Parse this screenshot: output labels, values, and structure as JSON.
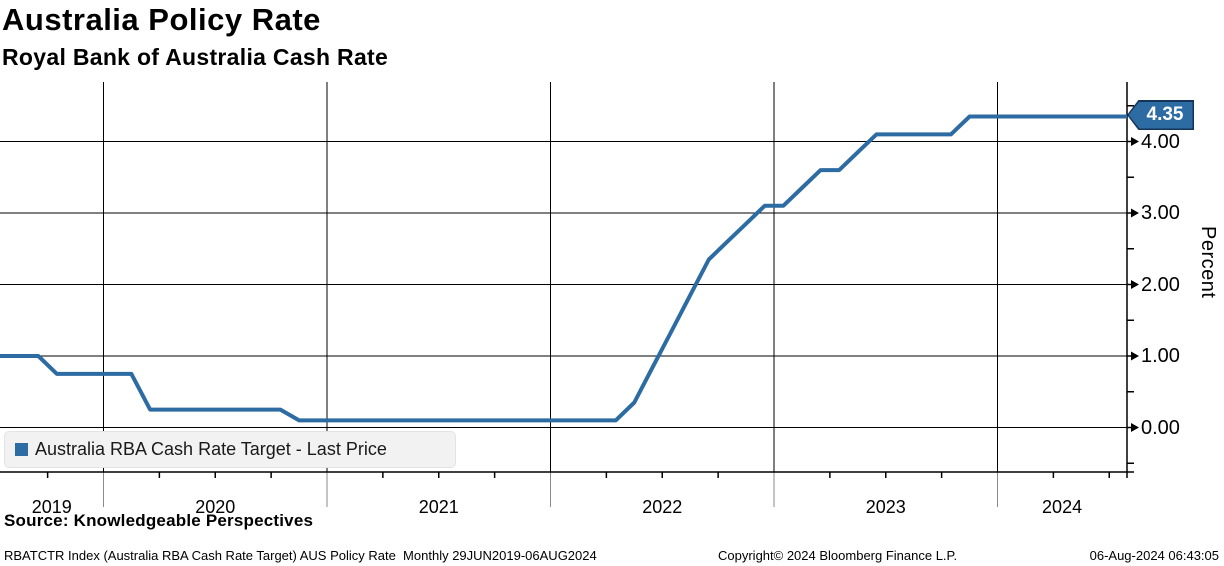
{
  "header": {
    "title": "Australia Policy Rate",
    "subtitle": "Royal Bank of Australia Cash Rate"
  },
  "legend": {
    "label": "Australia RBA Cash Rate Target - Last Price"
  },
  "source_line": "Source: Knowledgeable Perspectives",
  "footer": {
    "left": "RBATCTR Index (Australia RBA Cash Rate Target) AUS Policy Rate  Monthly 29JUN2019-06AUG2024",
    "center": "Copyright© 2024 Bloomberg Finance L.P.",
    "right": "06-Aug-2024 06:43:05"
  },
  "colors": {
    "line": "#2d6ba3",
    "tag_fill": "#2d6ba3",
    "tag_border": "#15345a",
    "grid": "#000000",
    "year_separator_below_axis": "#8a8a8a"
  },
  "chart_data": {
    "type": "line",
    "title": "Australia Policy Rate",
    "subtitle": "Royal Bank of Australia Cash Rate",
    "ylabel": "Percent",
    "ylim": [
      -0.62,
      4.9
    ],
    "grid": true,
    "legend_position": "bottom-left",
    "last_price": {
      "label": "4.35",
      "value": 4.35
    },
    "yticks": [
      {
        "value": 0,
        "label": "0.00"
      },
      {
        "value": 1,
        "label": "1.00"
      },
      {
        "value": 2,
        "label": "2.00"
      },
      {
        "value": 3,
        "label": "3.00"
      },
      {
        "value": 4,
        "label": "4.00"
      }
    ],
    "yticks_minor": [
      -0.5,
      0.5,
      1.5,
      2.5,
      3.5,
      4.5
    ],
    "xticks_years": [
      {
        "label": "2019",
        "start": 2019.535,
        "end": 2020
      },
      {
        "label": "2020",
        "start": 2020,
        "end": 2021
      },
      {
        "label": "2021",
        "start": 2021,
        "end": 2022
      },
      {
        "label": "2022",
        "start": 2022,
        "end": 2023
      },
      {
        "label": "2023",
        "start": 2023,
        "end": 2024
      },
      {
        "label": "2024",
        "start": 2024,
        "end": 2024.578
      }
    ],
    "series": [
      {
        "name": "Australia RBA Cash Rate Target - Last Price",
        "color": "#2d6ba3",
        "monthly": [
          [
            "2019-06",
            1.0
          ],
          [
            "2019-07",
            1.0
          ],
          [
            "2019-08",
            1.0
          ],
          [
            "2019-09",
            1.0
          ],
          [
            "2019-10",
            0.75
          ],
          [
            "2019-11",
            0.75
          ],
          [
            "2019-12",
            0.75
          ],
          [
            "2020-01",
            0.75
          ],
          [
            "2020-02",
            0.75
          ],
          [
            "2020-03",
            0.25
          ],
          [
            "2020-04",
            0.25
          ],
          [
            "2020-05",
            0.25
          ],
          [
            "2020-06",
            0.25
          ],
          [
            "2020-07",
            0.25
          ],
          [
            "2020-08",
            0.25
          ],
          [
            "2020-09",
            0.25
          ],
          [
            "2020-10",
            0.25
          ],
          [
            "2020-11",
            0.1
          ],
          [
            "2020-12",
            0.1
          ],
          [
            "2021-01",
            0.1
          ],
          [
            "2021-02",
            0.1
          ],
          [
            "2021-03",
            0.1
          ],
          [
            "2021-04",
            0.1
          ],
          [
            "2021-05",
            0.1
          ],
          [
            "2021-06",
            0.1
          ],
          [
            "2021-07",
            0.1
          ],
          [
            "2021-08",
            0.1
          ],
          [
            "2021-09",
            0.1
          ],
          [
            "2021-10",
            0.1
          ],
          [
            "2021-11",
            0.1
          ],
          [
            "2021-12",
            0.1
          ],
          [
            "2022-01",
            0.1
          ],
          [
            "2022-02",
            0.1
          ],
          [
            "2022-03",
            0.1
          ],
          [
            "2022-04",
            0.1
          ],
          [
            "2022-05",
            0.35
          ],
          [
            "2022-06",
            0.85
          ],
          [
            "2022-07",
            1.35
          ],
          [
            "2022-08",
            1.85
          ],
          [
            "2022-09",
            2.35
          ],
          [
            "2022-10",
            2.6
          ],
          [
            "2022-11",
            2.85
          ],
          [
            "2022-12",
            3.1
          ],
          [
            "2023-01",
            3.1
          ],
          [
            "2023-02",
            3.35
          ],
          [
            "2023-03",
            3.6
          ],
          [
            "2023-04",
            3.6
          ],
          [
            "2023-05",
            3.85
          ],
          [
            "2023-06",
            4.1
          ],
          [
            "2023-07",
            4.1
          ],
          [
            "2023-08",
            4.1
          ],
          [
            "2023-09",
            4.1
          ],
          [
            "2023-10",
            4.1
          ],
          [
            "2023-11",
            4.35
          ],
          [
            "2023-12",
            4.35
          ],
          [
            "2024-01",
            4.35
          ],
          [
            "2024-02",
            4.35
          ],
          [
            "2024-03",
            4.35
          ],
          [
            "2024-04",
            4.35
          ],
          [
            "2024-05",
            4.35
          ],
          [
            "2024-06",
            4.35
          ],
          [
            "2024-07",
            4.35
          ],
          [
            "2024-08",
            4.35
          ]
        ]
      }
    ]
  }
}
